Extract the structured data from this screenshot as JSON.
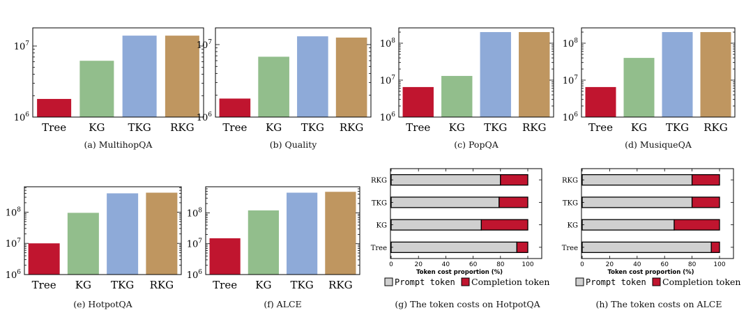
{
  "colors": {
    "Tree": "#c0152f",
    "KG": "#92be8c",
    "TKG": "#8eaad8",
    "RKG": "#bf9660",
    "prompt": "#d0d0d0",
    "completion": "#c0152f"
  },
  "legend": {
    "prompt": "Prompt token",
    "completion": "Completion token"
  },
  "chart_data": [
    {
      "id": "a",
      "type": "bar",
      "scale": "log",
      "caption": "(a)  MultihopQA",
      "categories": [
        "Tree",
        "KG",
        "TKG",
        "RKG"
      ],
      "values": [
        1800000,
        6200000,
        14000000,
        14000000
      ],
      "ylim": [
        1000000,
        18000000
      ],
      "yticks": [
        {
          "value": 1000000,
          "base": "10",
          "exp": "6"
        },
        {
          "value": 10000000,
          "base": "10",
          "exp": "7"
        }
      ]
    },
    {
      "id": "b",
      "type": "bar",
      "scale": "log",
      "caption": "(b)  Quality",
      "categories": [
        "Tree",
        "KG",
        "TKG",
        "RKG"
      ],
      "values": [
        1800000,
        6800000,
        13000000,
        12500000
      ],
      "ylim": [
        1000000,
        17000000
      ],
      "yticks": [
        {
          "value": 1000000,
          "base": "10",
          "exp": "6"
        },
        {
          "value": 10000000,
          "base": "10",
          "exp": "7"
        }
      ]
    },
    {
      "id": "c",
      "type": "bar",
      "scale": "log",
      "caption": "(c)  PopQA",
      "categories": [
        "Tree",
        "KG",
        "TKG",
        "RKG"
      ],
      "values": [
        6500000,
        13000000,
        200000000,
        200000000
      ],
      "ylim": [
        1000000,
        260000000
      ],
      "yticks": [
        {
          "value": 1000000,
          "base": "10",
          "exp": "6"
        },
        {
          "value": 10000000,
          "base": "10",
          "exp": "7"
        },
        {
          "value": 100000000,
          "base": "10",
          "exp": "8"
        }
      ]
    },
    {
      "id": "d",
      "type": "bar",
      "scale": "log",
      "caption": "(d)  MusiqueQA",
      "categories": [
        "Tree",
        "KG",
        "TKG",
        "RKG"
      ],
      "values": [
        6500000,
        40000000,
        200000000,
        200000000
      ],
      "ylim": [
        1000000,
        260000000
      ],
      "yticks": [
        {
          "value": 1000000,
          "base": "10",
          "exp": "6"
        },
        {
          "value": 10000000,
          "base": "10",
          "exp": "7"
        },
        {
          "value": 100000000,
          "base": "10",
          "exp": "8"
        }
      ]
    },
    {
      "id": "e",
      "type": "bar",
      "scale": "log",
      "caption": "(e)  HotpotQA",
      "categories": [
        "Tree",
        "KG",
        "TKG",
        "RKG"
      ],
      "values": [
        10000000,
        95000000,
        400000000,
        420000000
      ],
      "ylim": [
        1000000,
        650000000
      ],
      "yticks": [
        {
          "value": 1000000,
          "base": "10",
          "exp": "6"
        },
        {
          "value": 10000000,
          "base": "10",
          "exp": "7"
        },
        {
          "value": 100000000,
          "base": "10",
          "exp": "8"
        }
      ]
    },
    {
      "id": "f",
      "type": "bar",
      "scale": "log",
      "caption": "(f)  ALCE",
      "categories": [
        "Tree",
        "KG",
        "TKG",
        "RKG"
      ],
      "values": [
        15000000,
        120000000,
        450000000,
        480000000
      ],
      "ylim": [
        1000000,
        700000000
      ],
      "yticks": [
        {
          "value": 1000000,
          "base": "10",
          "exp": "6"
        },
        {
          "value": 10000000,
          "base": "10",
          "exp": "7"
        },
        {
          "value": 100000000,
          "base": "10",
          "exp": "8"
        }
      ]
    },
    {
      "id": "g",
      "type": "bar",
      "orientation": "horizontal",
      "stacked": true,
      "caption": "(g)  The token costs on HotpotQA",
      "xlabel": "Token cost proportion (%)",
      "categories": [
        "RKG",
        "TKG",
        "KG",
        "Tree"
      ],
      "xlim": [
        0,
        100
      ],
      "xticks": [
        0,
        20,
        40,
        60,
        80,
        100
      ],
      "series": [
        {
          "name": "Prompt token",
          "values": [
            80,
            79,
            66,
            92
          ]
        },
        {
          "name": "Completion token",
          "values": [
            20,
            21,
            34,
            8
          ]
        }
      ]
    },
    {
      "id": "h",
      "type": "bar",
      "orientation": "horizontal",
      "stacked": true,
      "caption": "(h)  The token costs on ALCE",
      "xlabel": "Token cost proportion (%)",
      "categories": [
        "RKG",
        "TKG",
        "KG",
        "Tree"
      ],
      "xlim": [
        0,
        100
      ],
      "xticks": [
        0,
        20,
        40,
        60,
        80,
        100
      ],
      "series": [
        {
          "name": "Prompt token",
          "values": [
            80,
            80,
            67,
            94
          ]
        },
        {
          "name": "Completion token",
          "values": [
            20,
            20,
            33,
            6
          ]
        }
      ]
    }
  ]
}
